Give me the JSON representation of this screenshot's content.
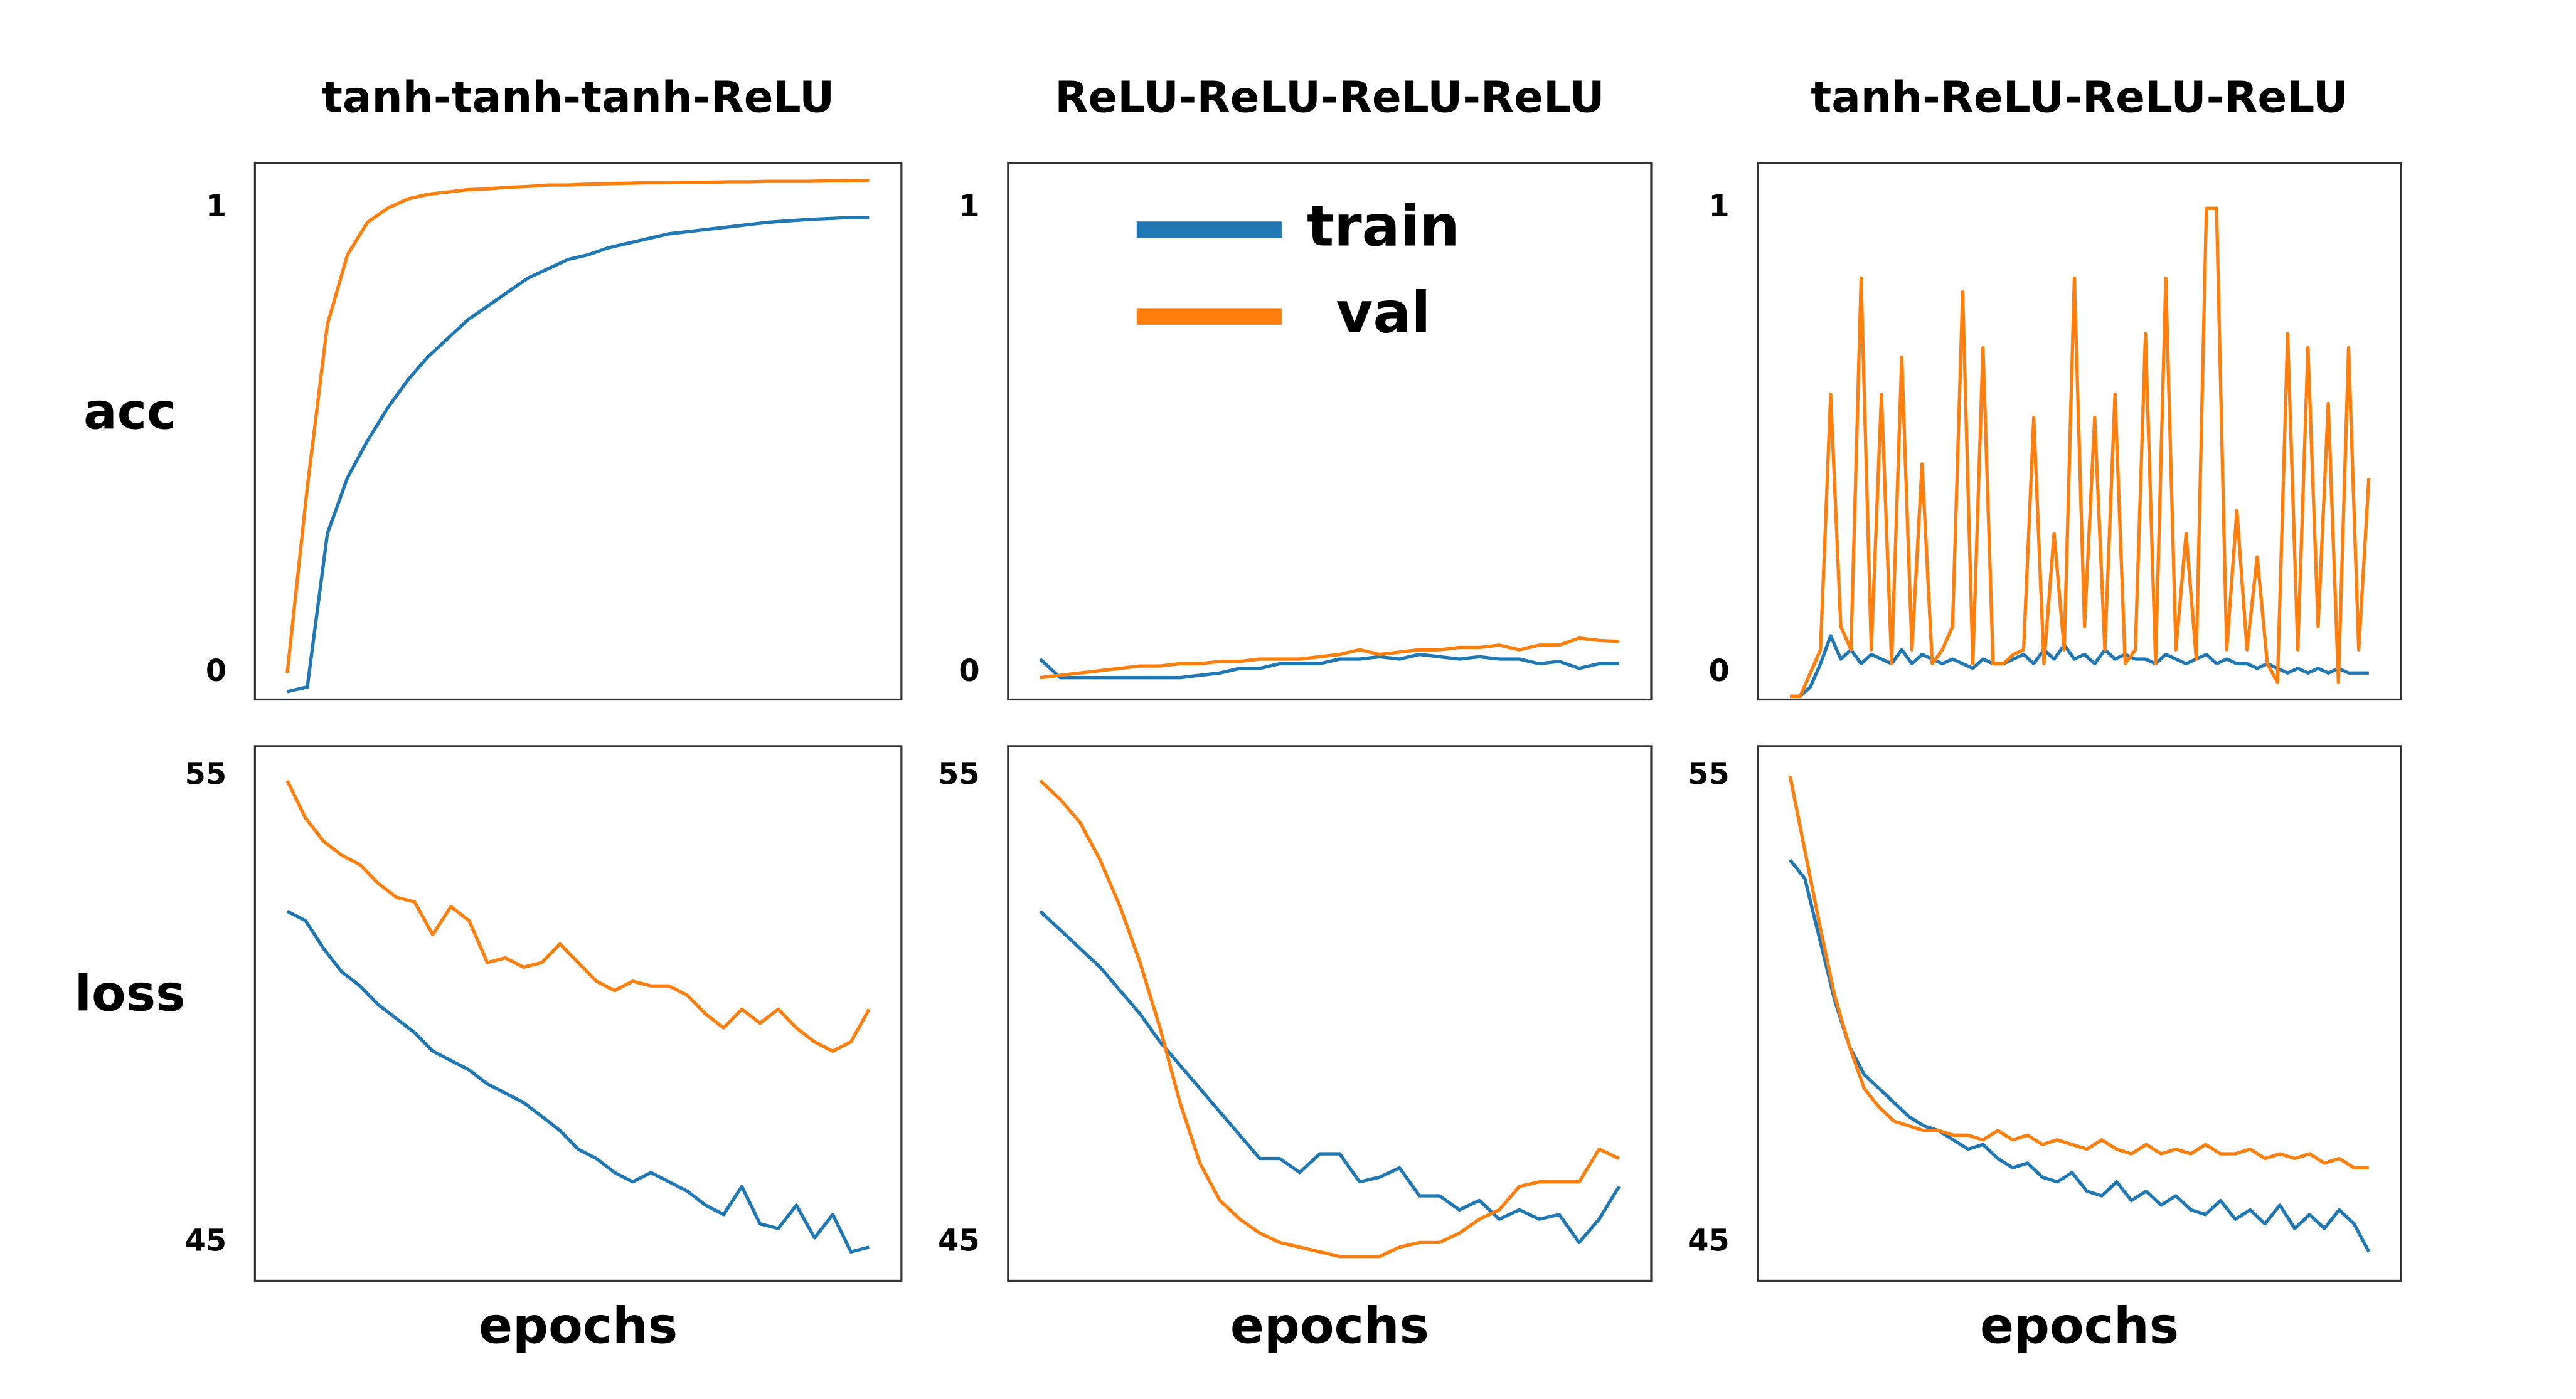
{
  "chart_data": [
    {
      "type": "line",
      "title": "tanh-tanh-tanh-ReLU",
      "ylabel": "acc",
      "ylim": [
        -0.057,
        1.097
      ],
      "yticks": [
        0,
        1
      ],
      "series": [
        {
          "name": "train",
          "color": "#1f77b4",
          "values": [
            -0.04,
            -0.03,
            0.3,
            0.42,
            0.5,
            0.57,
            0.63,
            0.68,
            0.72,
            0.76,
            0.79,
            0.82,
            0.85,
            0.87,
            0.89,
            0.9,
            0.915,
            0.925,
            0.935,
            0.945,
            0.95,
            0.955,
            0.96,
            0.965,
            0.97,
            0.973,
            0.976,
            0.978,
            0.98,
            0.98
          ]
        },
        {
          "name": "val",
          "color": "#ff7f0e",
          "values": [
            0.0,
            0.4,
            0.75,
            0.9,
            0.97,
            1.0,
            1.02,
            1.03,
            1.035,
            1.04,
            1.042,
            1.045,
            1.047,
            1.05,
            1.05,
            1.052,
            1.053,
            1.054,
            1.055,
            1.055,
            1.056,
            1.056,
            1.057,
            1.057,
            1.058,
            1.058,
            1.058,
            1.059,
            1.059,
            1.06
          ]
        }
      ]
    },
    {
      "type": "line",
      "title": "ReLU-ReLU-ReLU-ReLU",
      "ylim": [
        -0.057,
        1.097
      ],
      "yticks": [
        0,
        1
      ],
      "legend": "upper center",
      "series": [
        {
          "name": "train",
          "color": "#1f77b4",
          "values": [
            0.03,
            -0.01,
            -0.01,
            -0.01,
            -0.01,
            -0.01,
            -0.01,
            -0.01,
            -0.005,
            0.0,
            0.01,
            0.01,
            0.02,
            0.02,
            0.02,
            0.03,
            0.03,
            0.035,
            0.03,
            0.04,
            0.035,
            0.03,
            0.035,
            0.03,
            0.03,
            0.02,
            0.025,
            0.01,
            0.02,
            0.02
          ]
        },
        {
          "name": "val",
          "color": "#ff7f0e",
          "values": [
            -0.01,
            -0.005,
            0.0,
            0.005,
            0.01,
            0.015,
            0.015,
            0.02,
            0.02,
            0.025,
            0.025,
            0.03,
            0.03,
            0.03,
            0.035,
            0.04,
            0.05,
            0.04,
            0.045,
            0.05,
            0.05,
            0.055,
            0.055,
            0.06,
            0.05,
            0.06,
            0.06,
            0.075,
            0.07,
            0.068
          ]
        }
      ]
    },
    {
      "type": "line",
      "title": "tanh-ReLU-ReLU-ReLU",
      "ylim": [
        -0.057,
        1.097
      ],
      "yticks": [
        0,
        1
      ],
      "series": [
        {
          "name": "train",
          "color": "#1f77b4",
          "values": [
            -0.05,
            -0.05,
            -0.03,
            0.02,
            0.08,
            0.03,
            0.05,
            0.02,
            0.04,
            0.03,
            0.02,
            0.05,
            0.02,
            0.04,
            0.03,
            0.02,
            0.03,
            0.02,
            0.01,
            0.03,
            0.02,
            0.02,
            0.03,
            0.04,
            0.02,
            0.05,
            0.03,
            0.06,
            0.03,
            0.04,
            0.02,
            0.05,
            0.03,
            0.04,
            0.03,
            0.03,
            0.02,
            0.04,
            0.03,
            0.02,
            0.03,
            0.04,
            0.02,
            0.03,
            0.02,
            0.02,
            0.01,
            0.02,
            0.01,
            0.0,
            0.01,
            0.0,
            0.01,
            0.0,
            0.01,
            0.0,
            0.0,
            0.0
          ]
        },
        {
          "name": "val",
          "color": "#ff7f0e",
          "values": [
            -0.05,
            -0.05,
            0.0,
            0.05,
            0.6,
            0.1,
            0.05,
            0.85,
            0.05,
            0.6,
            0.02,
            0.68,
            0.05,
            0.45,
            0.02,
            0.05,
            0.1,
            0.82,
            0.02,
            0.7,
            0.02,
            0.02,
            0.04,
            0.05,
            0.55,
            0.02,
            0.3,
            0.05,
            0.85,
            0.1,
            0.55,
            0.05,
            0.6,
            0.02,
            0.05,
            0.73,
            0.02,
            0.85,
            0.05,
            0.3,
            0.03,
            1.0,
            1.0,
            0.05,
            0.35,
            0.05,
            0.25,
            0.02,
            -0.02,
            0.73,
            0.05,
            0.7,
            0.1,
            0.58,
            -0.02,
            0.7,
            0.05,
            0.42
          ]
        }
      ]
    },
    {
      "type": "line",
      "ylabel": "loss",
      "xlabel": "epochs",
      "ylim": [
        44.18,
        55.64
      ],
      "yticks": [
        45,
        55
      ],
      "series": [
        {
          "name": "train",
          "color": "#1f77b4",
          "values": [
            52.1,
            51.9,
            51.3,
            50.8,
            50.5,
            50.1,
            49.8,
            49.5,
            49.1,
            48.9,
            48.7,
            48.4,
            48.2,
            48.0,
            47.7,
            47.4,
            47.0,
            46.8,
            46.5,
            46.3,
            46.5,
            46.3,
            46.1,
            45.8,
            45.6,
            46.2,
            45.4,
            45.3,
            45.8,
            45.1,
            45.6,
            44.8,
            44.9
          ]
        },
        {
          "name": "val",
          "color": "#ff7f0e",
          "values": [
            54.9,
            54.1,
            53.6,
            53.3,
            53.1,
            52.7,
            52.4,
            52.3,
            51.6,
            52.2,
            51.9,
            51.0,
            51.1,
            50.9,
            51.0,
            51.4,
            51.0,
            50.6,
            50.4,
            50.6,
            50.5,
            50.5,
            50.3,
            49.9,
            49.6,
            50.0,
            49.7,
            50.0,
            49.6,
            49.3,
            49.1,
            49.3,
            50.0
          ]
        }
      ]
    },
    {
      "type": "line",
      "xlabel": "epochs",
      "ylim": [
        44.18,
        55.64
      ],
      "yticks": [
        45,
        55
      ],
      "series": [
        {
          "name": "train",
          "color": "#1f77b4",
          "values": [
            52.1,
            51.7,
            51.3,
            50.9,
            50.4,
            49.9,
            49.3,
            48.8,
            48.3,
            47.8,
            47.3,
            46.8,
            46.8,
            46.5,
            46.9,
            46.9,
            46.3,
            46.4,
            46.6,
            46.0,
            46.0,
            45.7,
            45.9,
            45.5,
            45.7,
            45.5,
            45.6,
            45.0,
            45.5,
            46.2
          ]
        },
        {
          "name": "val",
          "color": "#ff7f0e",
          "values": [
            54.9,
            54.5,
            54.0,
            53.2,
            52.2,
            51.0,
            49.6,
            48.0,
            46.7,
            45.9,
            45.5,
            45.2,
            45.0,
            44.9,
            44.8,
            44.7,
            44.7,
            44.7,
            44.9,
            45.0,
            45.0,
            45.2,
            45.5,
            45.7,
            46.2,
            46.3,
            46.3,
            46.3,
            47.0,
            46.8
          ]
        }
      ]
    },
    {
      "type": "line",
      "xlabel": "epochs",
      "ylim": [
        44.18,
        55.64
      ],
      "yticks": [
        45,
        55
      ],
      "series": [
        {
          "name": "train",
          "color": "#1f77b4",
          "values": [
            53.2,
            52.8,
            51.5,
            50.2,
            49.2,
            48.6,
            48.3,
            48.0,
            47.7,
            47.5,
            47.4,
            47.2,
            47.0,
            47.1,
            46.8,
            46.6,
            46.7,
            46.4,
            46.3,
            46.5,
            46.1,
            46.0,
            46.3,
            45.9,
            46.1,
            45.8,
            46.0,
            45.7,
            45.6,
            45.9,
            45.5,
            45.7,
            45.4,
            45.8,
            45.3,
            45.6,
            45.3,
            45.7,
            45.4,
            44.8
          ]
        },
        {
          "name": "val",
          "color": "#ff7f0e",
          "values": [
            55.0,
            53.4,
            51.8,
            50.3,
            49.2,
            48.3,
            47.9,
            47.6,
            47.5,
            47.4,
            47.4,
            47.3,
            47.3,
            47.2,
            47.4,
            47.2,
            47.3,
            47.1,
            47.2,
            47.1,
            47.0,
            47.2,
            47.0,
            46.9,
            47.1,
            46.9,
            47.0,
            46.9,
            47.1,
            46.9,
            46.9,
            47.0,
            46.8,
            46.9,
            46.8,
            46.9,
            46.7,
            46.8,
            46.6,
            46.6
          ]
        }
      ]
    }
  ]
}
